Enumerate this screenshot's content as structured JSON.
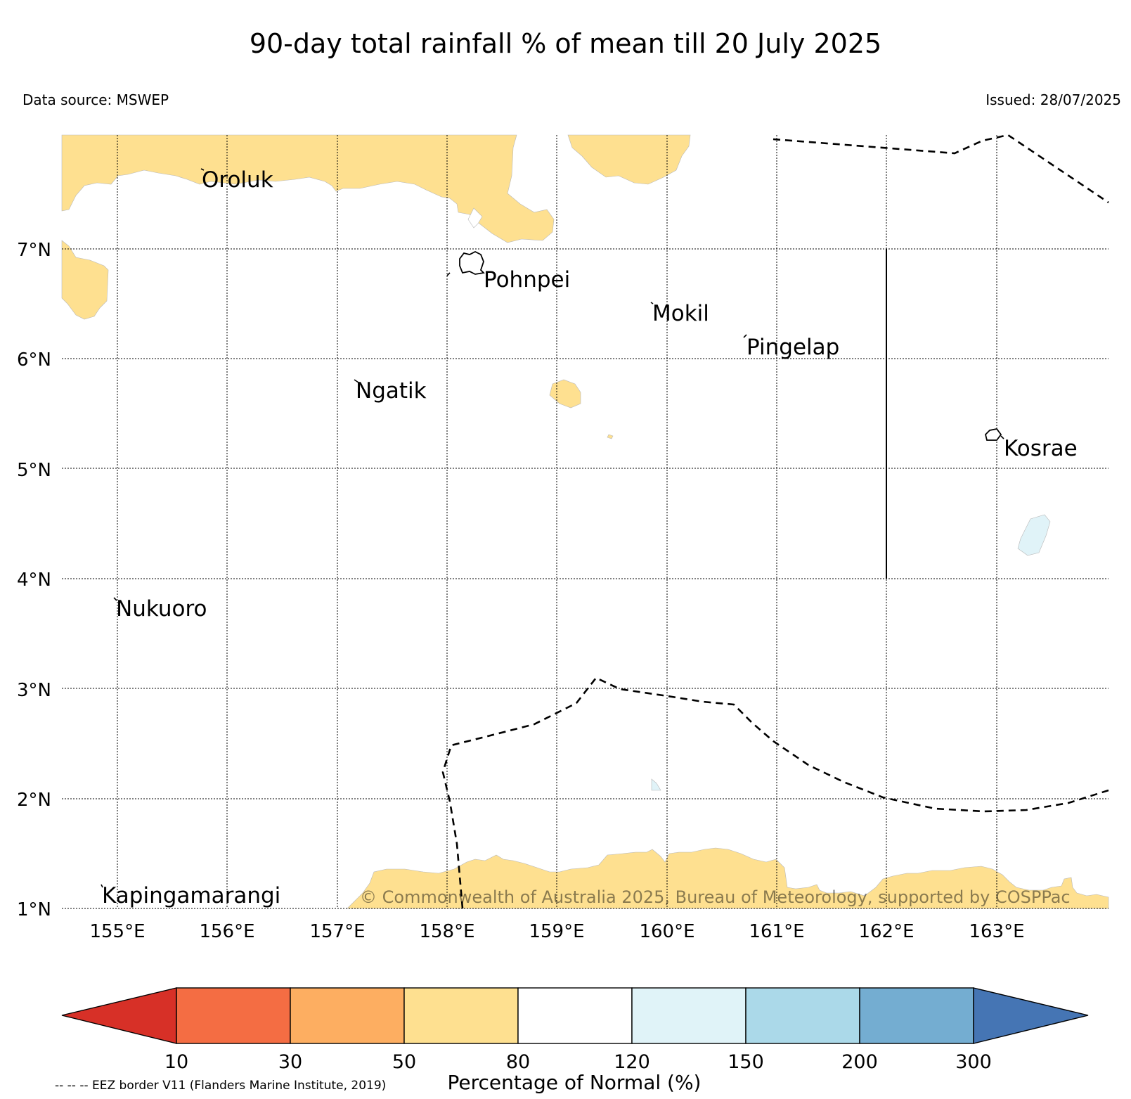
{
  "title": "90-day total rainfall % of mean till 20 July 2025",
  "data_source": "Data source: MSWEP",
  "issued": "Issued: 28/07/2025",
  "copyright": "© Commonwealth of Australia 2025, Bureau of Meteorology, supported by COSPPac",
  "eez_note": "-- -- -- EEZ border V11 (Flanders Marine Institute, 2019)",
  "map": {
    "lon_range": [
      154.5,
      164.0
    ],
    "lat_range": [
      1.0,
      8.0
    ],
    "lon_labels": [
      "155°E",
      "156°E",
      "157°E",
      "158°E",
      "159°E",
      "160°E",
      "161°E",
      "162°E",
      "163°E"
    ],
    "lat_labels": [
      "1°N",
      "2°N",
      "3°N",
      "4°N",
      "5°N",
      "6°N",
      "7°N"
    ],
    "gridlines": true,
    "places": [
      "Oroluk",
      "Pohnpei",
      "Mokil",
      "Pingelap",
      "Ngatik",
      "Kosrae",
      "Nukuoro",
      "Kapingamarangi"
    ]
  },
  "colorbar": {
    "title": "Percentage of Normal (%)",
    "ticks": [
      "10",
      "30",
      "50",
      "80",
      "120",
      "150",
      "200",
      "300"
    ],
    "colors": [
      "#d73027",
      "#f46d43",
      "#fdae61",
      "#fee090",
      "#ffffff",
      "#e0f3f8",
      "#abd9e9",
      "#74add1",
      "#4575b4"
    ]
  }
}
